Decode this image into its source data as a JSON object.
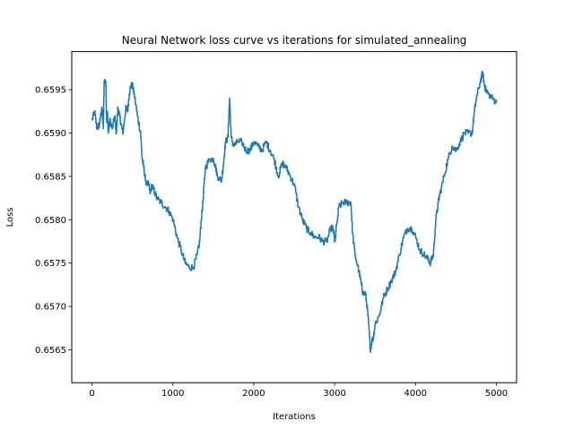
{
  "chart_data": {
    "type": "line",
    "title": "Neural Network loss curve vs iterations for simulated_annealing",
    "xlabel": "Iterations",
    "ylabel": "Loss",
    "xlim": [
      -250,
      5250
    ],
    "ylim": [
      0.65612,
      0.65994
    ],
    "xticks": [
      0,
      1000,
      2000,
      3000,
      4000,
      5000
    ],
    "yticks": [
      0.6565,
      0.657,
      0.6575,
      0.658,
      0.6585,
      0.659,
      0.6595
    ],
    "ytick_labels": [
      "0.6565",
      "0.6570",
      "0.6575",
      "0.6580",
      "0.6585",
      "0.6590",
      "0.6595"
    ],
    "grid": false,
    "line_color": "#1f77b4",
    "series": [
      {
        "x": [
          0,
          30,
          60,
          90,
          100,
          120,
          140,
          150,
          170,
          180,
          190,
          200,
          220,
          250,
          280,
          300,
          320,
          340,
          360,
          380,
          400,
          420,
          440,
          460,
          480,
          500,
          520,
          560,
          600,
          620,
          640,
          660,
          700,
          720,
          740,
          760,
          800,
          850,
          900,
          950,
          1000,
          1050,
          1100,
          1150,
          1200,
          1250,
          1300,
          1330,
          1350,
          1370,
          1400,
          1450,
          1500,
          1530,
          1550,
          1600,
          1630,
          1650,
          1680,
          1700,
          1720,
          1750,
          1800,
          1850,
          1900,
          1950,
          2000,
          2050,
          2100,
          2150,
          2200,
          2250,
          2300,
          2350,
          2400,
          2450,
          2500,
          2550,
          2600,
          2650,
          2700,
          2750,
          2800,
          2850,
          2900,
          2950,
          2980,
          3000,
          3050,
          3100,
          3150,
          3200,
          3220,
          3250,
          3300,
          3330,
          3350,
          3380,
          3400,
          3420,
          3440,
          3460,
          3480,
          3500,
          3550,
          3600,
          3650,
          3700,
          3750,
          3800,
          3850,
          3900,
          3950,
          4000,
          4050,
          4100,
          4150,
          4180,
          4200,
          4220,
          4250,
          4280,
          4300,
          4350,
          4400,
          4450,
          4500,
          4550,
          4600,
          4650,
          4700,
          4720,
          4750,
          4800,
          4830,
          4850,
          4870,
          4900,
          4950,
          5000
        ],
        "values": [
          0.65915,
          0.65925,
          0.65905,
          0.6591,
          0.65915,
          0.6593,
          0.65905,
          0.6596,
          0.6596,
          0.65915,
          0.65925,
          0.659,
          0.65915,
          0.65905,
          0.6592,
          0.659,
          0.6593,
          0.6592,
          0.6591,
          0.659,
          0.65915,
          0.6593,
          0.65925,
          0.65945,
          0.65955,
          0.65955,
          0.65945,
          0.6592,
          0.659,
          0.6587,
          0.6586,
          0.65845,
          0.6584,
          0.6583,
          0.6584,
          0.65835,
          0.65825,
          0.6582,
          0.65815,
          0.6581,
          0.658,
          0.6578,
          0.65765,
          0.6575,
          0.65745,
          0.65745,
          0.6576,
          0.65775,
          0.658,
          0.6582,
          0.6586,
          0.6587,
          0.6587,
          0.6586,
          0.6585,
          0.65845,
          0.6587,
          0.6589,
          0.65895,
          0.6594,
          0.65895,
          0.65885,
          0.6589,
          0.6589,
          0.6588,
          0.6588,
          0.6589,
          0.65885,
          0.6588,
          0.6589,
          0.6588,
          0.6587,
          0.6585,
          0.65865,
          0.6586,
          0.6585,
          0.6584,
          0.65815,
          0.658,
          0.6579,
          0.65785,
          0.6578,
          0.6578,
          0.65775,
          0.65775,
          0.6579,
          0.6579,
          0.65775,
          0.65815,
          0.6582,
          0.6582,
          0.6582,
          0.65785,
          0.6576,
          0.6574,
          0.65725,
          0.65715,
          0.65715,
          0.657,
          0.6568,
          0.6565,
          0.6566,
          0.65665,
          0.6568,
          0.6569,
          0.6571,
          0.6572,
          0.6573,
          0.6574,
          0.6576,
          0.6578,
          0.6579,
          0.6579,
          0.6578,
          0.65765,
          0.6576,
          0.65755,
          0.6575,
          0.65755,
          0.6576,
          0.658,
          0.6582,
          0.6583,
          0.6585,
          0.6587,
          0.65885,
          0.6588,
          0.6589,
          0.659,
          0.659,
          0.659,
          0.6592,
          0.6594,
          0.6596,
          0.6597,
          0.65955,
          0.6595,
          0.65945,
          0.6594,
          0.65935
        ]
      }
    ]
  }
}
